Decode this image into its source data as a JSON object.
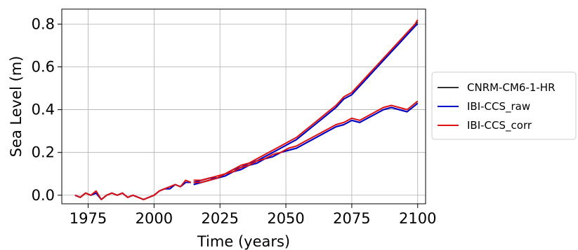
{
  "chart_data": {
    "type": "line",
    "title": "",
    "xlabel": "Time (years)",
    "ylabel": "Sea Level (m)",
    "xlim": [
      1965,
      2103
    ],
    "ylim": [
      -0.04,
      0.87
    ],
    "xticks": [
      1975,
      2000,
      2025,
      2050,
      2075,
      2100
    ],
    "yticks": [
      0.0,
      0.2,
      0.4,
      0.6,
      0.8
    ],
    "xtick_labels": [
      "1975",
      "2000",
      "2025",
      "2050",
      "2075",
      "2100"
    ],
    "ytick_labels": [
      "0.0",
      "0.2",
      "0.4",
      "0.6",
      "0.8"
    ],
    "grid": true,
    "legend_position": "outside-right",
    "legend": [
      "CNRM-CM6-1-HR",
      "IBI-CCS_raw",
      "IBI-CCS_corr"
    ],
    "series": [
      {
        "name": "CNRM-CM6-1-HR",
        "color": "#333333",
        "segments": [
          {
            "x": [
              1970,
              1972,
              1974,
              1976,
              1978,
              1980,
              1982,
              1984,
              1986,
              1988,
              1990,
              1992,
              1994,
              1996,
              1998,
              2000,
              2002,
              2004,
              2006,
              2008,
              2010,
              2012,
              2014
            ],
            "y": [
              0.0,
              -0.01,
              0.01,
              0.0,
              0.01,
              -0.02,
              0.0,
              0.01,
              0.0,
              0.01,
              -0.01,
              0.0,
              -0.01,
              -0.02,
              -0.01,
              0.0,
              0.02,
              0.03,
              0.03,
              0.05,
              0.04,
              0.06,
              0.06
            ]
          },
          {
            "x": [
              2015,
              2018,
              2021,
              2024,
              2027,
              2030,
              2033,
              2036,
              2039,
              2042,
              2045,
              2048,
              2051,
              2054,
              2057,
              2060,
              2063,
              2066,
              2069,
              2072,
              2075,
              2078,
              2081,
              2084,
              2087,
              2090,
              2093,
              2096,
              2099,
              2100
            ],
            "y": [
              0.06,
              0.07,
              0.08,
              0.08,
              0.1,
              0.12,
              0.13,
              0.15,
              0.16,
              0.18,
              0.2,
              0.22,
              0.24,
              0.26,
              0.29,
              0.32,
              0.35,
              0.38,
              0.41,
              0.45,
              0.47,
              0.51,
              0.55,
              0.59,
              0.63,
              0.67,
              0.71,
              0.75,
              0.79,
              0.81
            ]
          },
          {
            "x": [
              2015,
              2018,
              2021,
              2024,
              2027,
              2030,
              2033,
              2036,
              2039,
              2042,
              2045,
              2048,
              2051,
              2054,
              2057,
              2060,
              2063,
              2066,
              2069,
              2072,
              2075,
              2078,
              2081,
              2084,
              2087,
              2090,
              2093,
              2096,
              2099,
              2100
            ],
            "y": [
              0.05,
              0.06,
              0.07,
              0.08,
              0.09,
              0.11,
              0.12,
              0.14,
              0.15,
              0.17,
              0.18,
              0.2,
              0.21,
              0.22,
              0.24,
              0.26,
              0.28,
              0.3,
              0.32,
              0.33,
              0.35,
              0.34,
              0.36,
              0.38,
              0.4,
              0.41,
              0.4,
              0.39,
              0.42,
              0.43
            ]
          }
        ]
      },
      {
        "name": "IBI-CCS_raw",
        "color": "#0000cc",
        "segments": [
          {
            "x": [
              1970,
              1972,
              1974,
              1976,
              1978,
              1980,
              1982,
              1984,
              1986,
              1988,
              1990,
              1992,
              1994,
              1996,
              1998,
              2000,
              2002,
              2004,
              2006,
              2008,
              2010,
              2012,
              2014
            ],
            "y": [
              0.0,
              -0.01,
              0.01,
              0.0,
              0.01,
              -0.02,
              0.0,
              0.01,
              0.0,
              0.01,
              -0.01,
              0.0,
              -0.01,
              -0.02,
              -0.01,
              0.0,
              0.02,
              0.03,
              0.03,
              0.05,
              0.04,
              0.06,
              0.06
            ]
          },
          {
            "x": [
              2015,
              2018,
              2021,
              2024,
              2027,
              2030,
              2033,
              2036,
              2039,
              2042,
              2045,
              2048,
              2051,
              2054,
              2057,
              2060,
              2063,
              2066,
              2069,
              2072,
              2075,
              2078,
              2081,
              2084,
              2087,
              2090,
              2093,
              2096,
              2099,
              2100
            ],
            "y": [
              0.06,
              0.07,
              0.08,
              0.08,
              0.1,
              0.12,
              0.13,
              0.15,
              0.16,
              0.18,
              0.2,
              0.22,
              0.24,
              0.26,
              0.29,
              0.32,
              0.35,
              0.38,
              0.41,
              0.45,
              0.47,
              0.51,
              0.55,
              0.59,
              0.63,
              0.67,
              0.71,
              0.75,
              0.79,
              0.8
            ]
          },
          {
            "x": [
              2015,
              2018,
              2021,
              2024,
              2027,
              2030,
              2033,
              2036,
              2039,
              2042,
              2045,
              2048,
              2051,
              2054,
              2057,
              2060,
              2063,
              2066,
              2069,
              2072,
              2075,
              2078,
              2081,
              2084,
              2087,
              2090,
              2093,
              2096,
              2099,
              2100
            ],
            "y": [
              0.05,
              0.06,
              0.07,
              0.08,
              0.09,
              0.11,
              0.12,
              0.14,
              0.15,
              0.17,
              0.18,
              0.2,
              0.21,
              0.22,
              0.24,
              0.26,
              0.28,
              0.3,
              0.32,
              0.33,
              0.35,
              0.34,
              0.36,
              0.38,
              0.4,
              0.41,
              0.4,
              0.39,
              0.42,
              0.43
            ]
          }
        ]
      },
      {
        "name": "IBI-CCS_corr",
        "color": "#dd1111",
        "segments": [
          {
            "x": [
              1970,
              1972,
              1974,
              1976,
              1978,
              1980,
              1982,
              1984,
              1986,
              1988,
              1990,
              1992,
              1994,
              1996,
              1998,
              2000,
              2002,
              2004,
              2006,
              2008,
              2010,
              2012,
              2014
            ],
            "y": [
              0.0,
              -0.01,
              0.01,
              0.0,
              0.02,
              -0.02,
              0.0,
              0.01,
              0.0,
              0.01,
              -0.01,
              0.0,
              -0.01,
              -0.02,
              -0.01,
              0.0,
              0.02,
              0.03,
              0.04,
              0.05,
              0.04,
              0.07,
              0.06
            ]
          },
          {
            "x": [
              2015,
              2018,
              2021,
              2024,
              2027,
              2030,
              2033,
              2036,
              2039,
              2042,
              2045,
              2048,
              2051,
              2054,
              2057,
              2060,
              2063,
              2066,
              2069,
              2072,
              2075,
              2078,
              2081,
              2084,
              2087,
              2090,
              2093,
              2096,
              2099,
              2100
            ],
            "y": [
              0.07,
              0.07,
              0.08,
              0.09,
              0.1,
              0.12,
              0.14,
              0.15,
              0.17,
              0.19,
              0.21,
              0.23,
              0.25,
              0.27,
              0.3,
              0.33,
              0.36,
              0.39,
              0.42,
              0.46,
              0.48,
              0.52,
              0.56,
              0.6,
              0.64,
              0.68,
              0.72,
              0.76,
              0.8,
              0.82
            ]
          },
          {
            "x": [
              2015,
              2018,
              2021,
              2024,
              2027,
              2030,
              2033,
              2036,
              2039,
              2042,
              2045,
              2048,
              2051,
              2054,
              2057,
              2060,
              2063,
              2066,
              2069,
              2072,
              2075,
              2078,
              2081,
              2084,
              2087,
              2090,
              2093,
              2096,
              2099,
              2100
            ],
            "y": [
              0.06,
              0.06,
              0.07,
              0.08,
              0.1,
              0.11,
              0.13,
              0.14,
              0.16,
              0.17,
              0.19,
              0.2,
              0.22,
              0.23,
              0.25,
              0.27,
              0.29,
              0.31,
              0.33,
              0.34,
              0.36,
              0.35,
              0.37,
              0.39,
              0.41,
              0.42,
              0.41,
              0.4,
              0.43,
              0.44
            ]
          }
        ]
      }
    ]
  }
}
